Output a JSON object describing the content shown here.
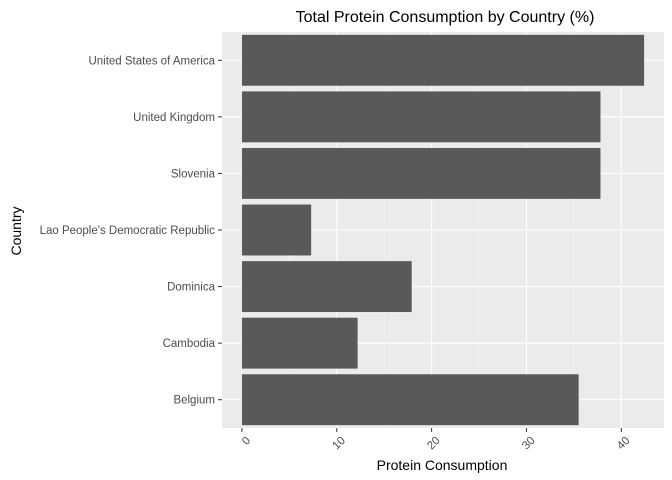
{
  "chart_data": {
    "type": "bar",
    "orientation": "horizontal",
    "title": "Total Protein Consumption by Country (%)",
    "xlabel": "Protein Consumption",
    "ylabel": "Country",
    "categories": [
      "Belgium",
      "Cambodia",
      "Dominica",
      "Lao People's Democratic Republic",
      "Slovenia",
      "United Kingdom",
      "United States of America"
    ],
    "values": [
      35.5,
      12.2,
      17.9,
      7.3,
      37.8,
      37.8,
      42.4
    ],
    "xlim": [
      -2.1,
      44.5
    ],
    "xticks": [
      0,
      10,
      20,
      30,
      40
    ],
    "xtick_labels": [
      "0",
      "10",
      "20",
      "30",
      "40"
    ],
    "grid": true,
    "legend": "none",
    "colors": {
      "bar": "#595959",
      "panel": "#ebebeb",
      "grid_major": "#ffffff",
      "axis_text": "#4d4d4d",
      "title_text": "#000000"
    }
  }
}
